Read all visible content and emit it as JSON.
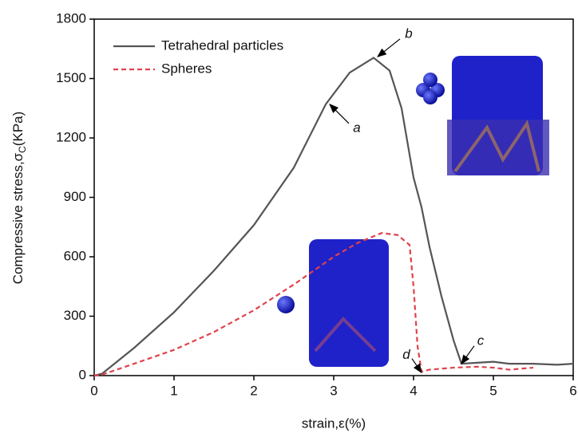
{
  "chart_data": {
    "type": "line",
    "ylabel_parts": [
      "Compressive stress,σ",
      "C",
      "(KPa)"
    ],
    "xlabel": "strain,ε(%)",
    "xlim": [
      0,
      6
    ],
    "xticks": [
      0,
      1,
      2,
      3,
      4,
      5,
      6
    ],
    "ylim": [
      0,
      1800
    ],
    "yticks": [
      0,
      300,
      600,
      900,
      1200,
      1500,
      1800
    ],
    "legend": "upper left",
    "series": [
      {
        "name": "Tetrahedral particles",
        "color": "#555555",
        "dash": false,
        "x": [
          0,
          0.1,
          0.5,
          1,
          1.5,
          2,
          2.5,
          2.9,
          3.2,
          3.5,
          3.7,
          3.85,
          4.0,
          4.1,
          4.2,
          4.35,
          4.5,
          4.6,
          4.8,
          5.0,
          5.2,
          5.5,
          5.8,
          6.0
        ],
        "values": [
          0,
          10,
          140,
          320,
          530,
          760,
          1050,
          1370,
          1530,
          1605,
          1540,
          1350,
          1000,
          850,
          650,
          400,
          180,
          60,
          65,
          70,
          60,
          60,
          55,
          60
        ]
      },
      {
        "name": "Spheres",
        "color": "#e0414b",
        "dash": true,
        "x": [
          0,
          0.1,
          0.5,
          1,
          1.5,
          2,
          2.5,
          3,
          3.3,
          3.6,
          3.8,
          3.95,
          4.0,
          4.05,
          4.1,
          4.2,
          4.5,
          4.8,
          5.0,
          5.2,
          5.5
        ],
        "values": [
          0,
          5,
          60,
          130,
          220,
          330,
          460,
          600,
          670,
          720,
          710,
          660,
          450,
          150,
          20,
          30,
          40,
          45,
          40,
          30,
          40
        ]
      }
    ],
    "annotations": [
      {
        "text": "a",
        "x": 2.95,
        "y": 1370
      },
      {
        "text": "b",
        "x": 3.55,
        "y": 1610
      },
      {
        "text": "c",
        "x": 4.6,
        "y": 60
      },
      {
        "text": "d",
        "x": 4.1,
        "y": 15
      }
    ]
  }
}
